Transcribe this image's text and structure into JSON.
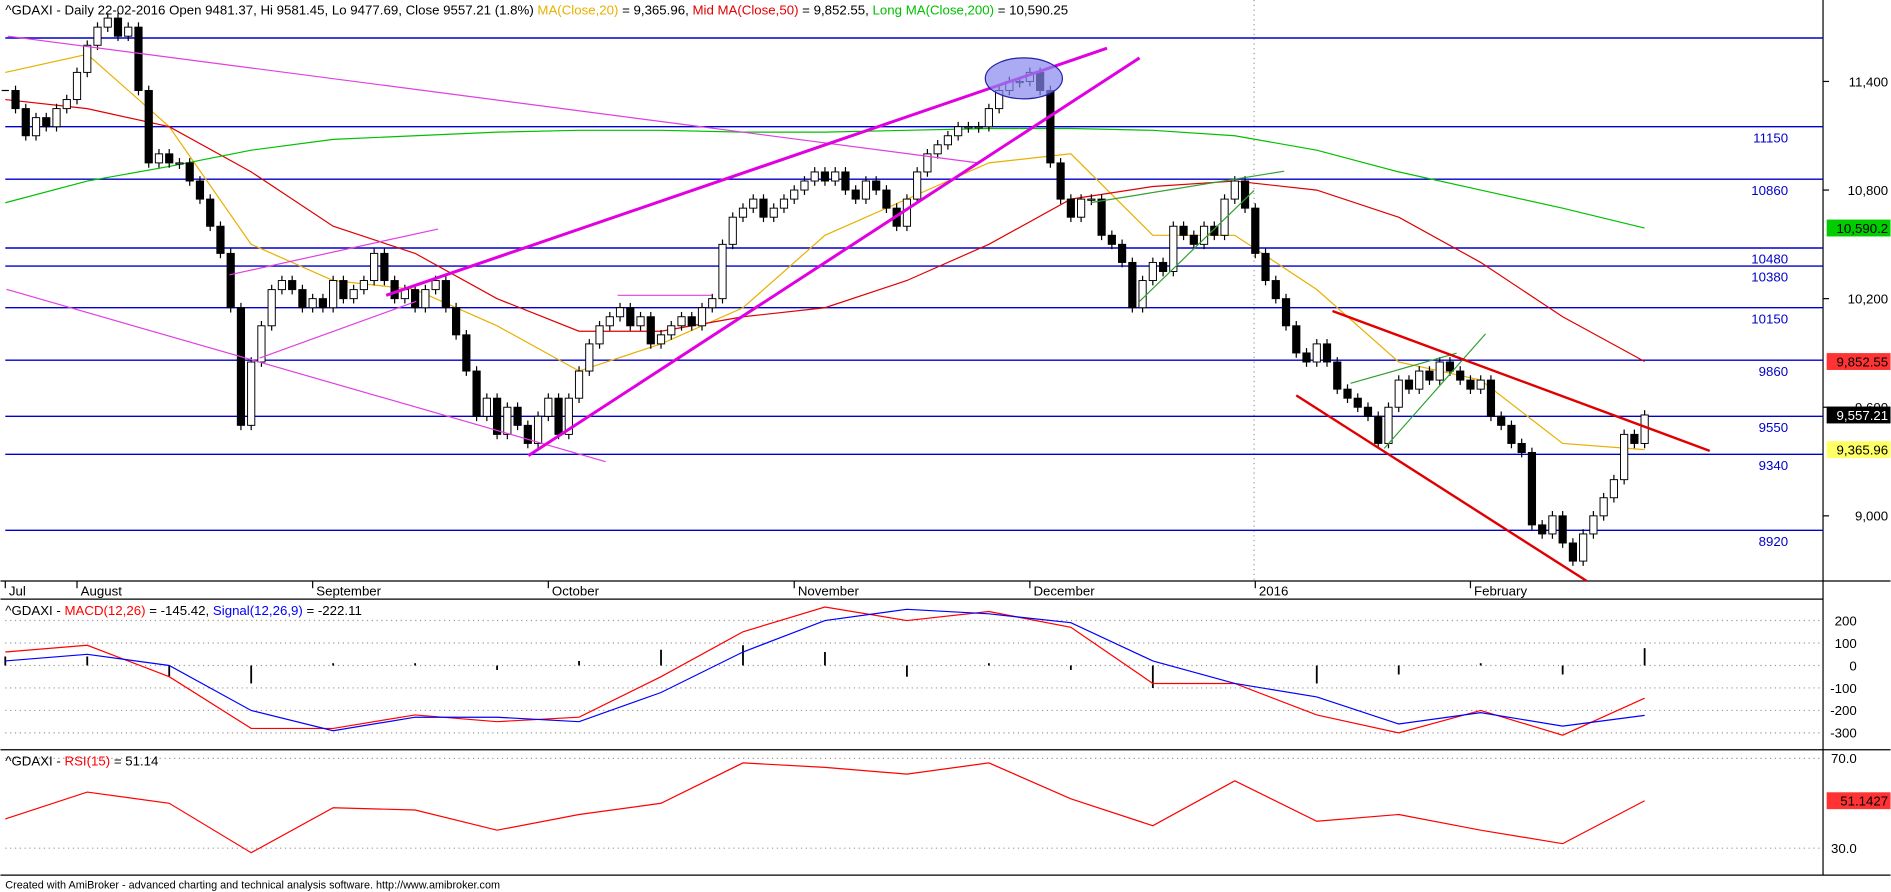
{
  "chart_data": [
    {
      "type": "candlestick",
      "title": "^GDAXI - Daily 22-02-2016 Open 9481.37, Hi 9581.45, Lo 9477.69, Close 9557.21 (1.8%) ",
      "close": [
        11350,
        11250,
        11100,
        11200,
        11150,
        11250,
        11300,
        11450,
        11600,
        11700,
        11750,
        11650,
        11700,
        11350,
        10950,
        11000,
        10950,
        10950,
        10850,
        10750,
        10600,
        10450,
        10150,
        9500,
        9850,
        10050,
        10250,
        10300,
        10250,
        10150,
        10200,
        10150,
        10300,
        10200,
        10250,
        10300,
        10450,
        10300,
        10200,
        10250,
        10150,
        10250,
        10300,
        10150,
        10000,
        9800,
        9550,
        9650,
        9450,
        9600,
        9500,
        9400,
        9550,
        9650,
        9450,
        9650,
        9800,
        9950,
        10050,
        10100,
        10150,
        10050,
        10100,
        9950,
        10000,
        10050,
        10100,
        10050,
        10150,
        10200,
        10500,
        10650,
        10700,
        10750,
        10650,
        10700,
        10750,
        10800,
        10850,
        10900,
        10850,
        10900,
        10800,
        10750,
        10850,
        10800,
        10700,
        10600,
        10750,
        10900,
        11000,
        11050,
        11100,
        11150,
        11150,
        11150,
        11250,
        11350,
        11400,
        11400,
        11450,
        11350,
        10950,
        10750,
        10650,
        10750,
        10750,
        10550,
        10500,
        10400,
        10150,
        10300,
        10400,
        10350,
        10600,
        10550,
        10500,
        10600,
        10550,
        10750,
        10850,
        10700,
        10450,
        10300,
        10200,
        10050,
        9900,
        9850,
        9950,
        9850,
        9700,
        9650,
        9600,
        9550,
        9400,
        9600,
        9750,
        9700,
        9800,
        9750,
        9850,
        9800,
        9750,
        9700,
        9750,
        9550,
        9500,
        9400,
        9350,
        8950,
        8900,
        9000,
        8850,
        8750,
        8900,
        9000,
        9100,
        9200,
        9450,
        9400,
        9557.21
      ],
      "last_label": "9,557.21",
      "tag_color": "#000000",
      "up_color": "#ffffff",
      "down_color": "#000000",
      "lines": [
        {
          "name": "MA(Close,20)",
          "legend_text": " = 9,365.96, ",
          "color": "#e8b000",
          "tag_color": "#ffff66",
          "last_label": "9,365.96",
          "values": [
            11450,
            11550,
            11150,
            10500,
            10300,
            10250,
            10050,
            9800,
            9950,
            10150,
            10550,
            10750,
            10950,
            11000,
            10550,
            10550,
            10250,
            9850,
            9750,
            9400,
            9365.96
          ]
        },
        {
          "name": "Mid MA(Close,50)",
          "legend_text": " = 9,852.55, ",
          "color": "#e00000",
          "tag_color": "#ff3333",
          "last_label": "9,852.55",
          "values": [
            11300,
            11250,
            11150,
            10900,
            10600,
            10450,
            10200,
            10020,
            10020,
            10100,
            10150,
            10300,
            10500,
            10750,
            10820,
            10850,
            10800,
            10650,
            10400,
            10100,
            9852.55
          ]
        },
        {
          "name": "Long MA(Close,200)",
          "legend_text": " = 10,590.25",
          "color": "#00c000",
          "tag_color": "#00cc00",
          "last_label": "10,590.2",
          "values": [
            10730,
            10850,
            10930,
            11020,
            11080,
            11100,
            11120,
            11130,
            11130,
            11120,
            11120,
            11130,
            11140,
            11140,
            11130,
            11100,
            11020,
            10900,
            10800,
            10700,
            10590.25
          ]
        }
      ],
      "levels": [
        11150,
        10860,
        10480,
        10380,
        10150,
        9860,
        9550,
        9340,
        8920
      ],
      "unlabeled_levels": [
        11640
      ],
      "level_color": "#0000cc",
      "ylim": [
        8640,
        11850
      ],
      "yticks": [
        {
          "value": 11400,
          "label": "11,400"
        },
        {
          "value": 10800,
          "label": "10,800"
        },
        {
          "value": 10200,
          "label": "10,200"
        },
        {
          "value": 9600,
          "label": "9,600"
        },
        {
          "value": 9000,
          "label": "9,000"
        }
      ],
      "months": [
        "Jul",
        "August",
        "September",
        "October",
        "November",
        "December",
        "2016",
        "February"
      ],
      "month_bars": [
        0,
        7,
        30,
        53,
        77,
        100,
        122,
        143
      ]
    },
    {
      "type": "macd",
      "title": "^GDAXI - ",
      "series": [
        {
          "name": "MACD(12,26)",
          "legend_text": " = -145.42, ",
          "color": "#ff0000",
          "values": [
            60,
            90,
            -50,
            -280,
            -280,
            -220,
            -250,
            -230,
            -50,
            150,
            260,
            200,
            240,
            170,
            -80,
            -80,
            -220,
            -300,
            -200,
            -310,
            -145.42
          ]
        },
        {
          "name": "Signal(12,26,9)",
          "legend_text": " = -222.11",
          "color": "#0000ff",
          "values": [
            20,
            50,
            0,
            -200,
            -290,
            -230,
            -230,
            -250,
            -120,
            60,
            200,
            250,
            230,
            190,
            20,
            -80,
            -140,
            -260,
            -210,
            -270,
            -222.11
          ]
        }
      ],
      "histogram": [
        40,
        40,
        -50,
        -80,
        10,
        10,
        -20,
        20,
        70,
        90,
        60,
        -50,
        10,
        -20,
        -100,
        0,
        -80,
        -40,
        10,
        -40,
        77
      ],
      "ylim": [
        -375,
        290
      ],
      "yticks": [
        200,
        100,
        0,
        -100,
        -200,
        -300
      ]
    },
    {
      "type": "rsi",
      "title": "^GDAXI - ",
      "series": [
        {
          "name": "RSI(15)",
          "legend_text": " = 51.14",
          "color": "#ff0000",
          "tag_color": "#ff3333",
          "last_label": "51.1427",
          "values": [
            43,
            55,
            50,
            28,
            48,
            47,
            38,
            45,
            50,
            68,
            66,
            63,
            68,
            52,
            40,
            60,
            42,
            45,
            38,
            32,
            51.14
          ]
        }
      ],
      "ylim": [
        18,
        73.3
      ],
      "yticks": [
        {
          "value": 70,
          "label": "70.0"
        },
        {
          "value": 30,
          "label": "30.0"
        }
      ]
    }
  ],
  "footer": "Created with AmiBroker - advanced charting and technical analysis software. http://www.amibroker.com"
}
